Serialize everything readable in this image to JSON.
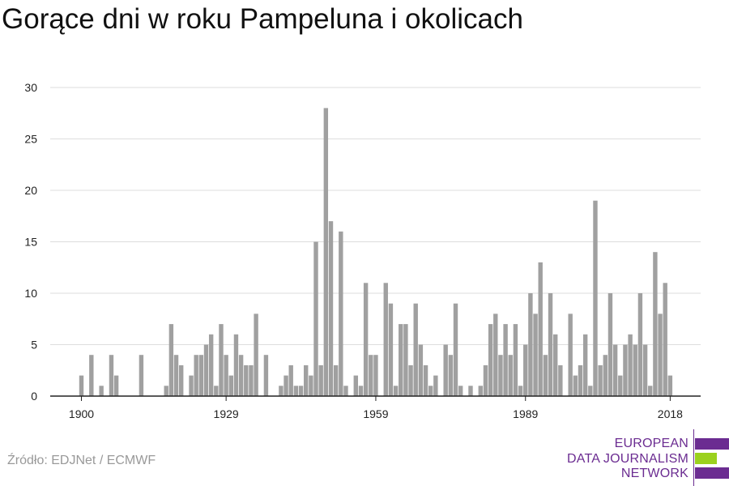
{
  "title": "Gorące dni w roku Pampeluna i okolicach",
  "source": "Źródło: EDJNet / ECMWF",
  "logo": {
    "line1": "EUROPEAN",
    "line2": "DATA JOURNALISM",
    "line3": "NETWORK"
  },
  "colors": {
    "bar": "#a0a0a0",
    "grid": "#dddddd",
    "axis": "#222222",
    "text": "#222222",
    "logo_purple": "#6b2c91",
    "logo_green": "#9bd11e"
  },
  "chart_data": {
    "type": "bar",
    "title": "Gorące dni w roku Pampeluna i okolicach",
    "xlabel": "",
    "ylabel": "",
    "ylim": [
      0,
      30
    ],
    "yticks": [
      0,
      5,
      10,
      15,
      20,
      25,
      30
    ],
    "xticks": [
      1900,
      1929,
      1959,
      1989,
      2018
    ],
    "grid": true,
    "categories": [
      1897,
      1898,
      1899,
      1900,
      1901,
      1902,
      1903,
      1904,
      1905,
      1906,
      1907,
      1908,
      1909,
      1910,
      1911,
      1912,
      1913,
      1914,
      1915,
      1916,
      1917,
      1918,
      1919,
      1920,
      1921,
      1922,
      1923,
      1924,
      1925,
      1926,
      1927,
      1928,
      1929,
      1930,
      1931,
      1932,
      1933,
      1934,
      1935,
      1936,
      1937,
      1938,
      1939,
      1940,
      1941,
      1942,
      1943,
      1944,
      1945,
      1946,
      1947,
      1948,
      1949,
      1950,
      1951,
      1952,
      1953,
      1954,
      1955,
      1956,
      1957,
      1958,
      1959,
      1960,
      1961,
      1962,
      1963,
      1964,
      1965,
      1966,
      1967,
      1968,
      1969,
      1970,
      1971,
      1972,
      1973,
      1974,
      1975,
      1976,
      1977,
      1978,
      1979,
      1980,
      1981,
      1982,
      1983,
      1984,
      1985,
      1986,
      1987,
      1988,
      1989,
      1990,
      1991,
      1992,
      1993,
      1994,
      1995,
      1996,
      1997,
      1998,
      1999,
      2000,
      2001,
      2002,
      2003,
      2004,
      2005,
      2006,
      2007,
      2008,
      2009,
      2010,
      2011,
      2012,
      2013,
      2014,
      2015,
      2016,
      2017,
      2018
    ],
    "values": [
      0,
      0,
      0,
      2,
      0,
      4,
      0,
      1,
      0,
      4,
      2,
      0,
      0,
      0,
      0,
      4,
      0,
      0,
      0,
      0,
      1,
      7,
      4,
      3,
      0,
      2,
      4,
      4,
      5,
      6,
      1,
      7,
      4,
      2,
      6,
      4,
      3,
      3,
      8,
      0,
      4,
      0,
      0,
      1,
      2,
      3,
      1,
      1,
      3,
      2,
      15,
      3,
      28,
      17,
      3,
      16,
      1,
      0,
      2,
      1,
      11,
      4,
      4,
      0,
      11,
      9,
      1,
      7,
      7,
      3,
      9,
      5,
      3,
      1,
      2,
      0,
      5,
      4,
      9,
      1,
      0,
      1,
      0,
      1,
      3,
      7,
      8,
      4,
      7,
      4,
      7,
      1,
      5,
      10,
      8,
      13,
      4,
      10,
      6,
      3,
      0,
      8,
      2,
      3,
      6,
      1,
      19,
      3,
      4,
      10,
      5,
      2,
      5,
      6,
      5,
      10,
      5,
      1,
      14,
      8,
      11,
      2
    ]
  }
}
